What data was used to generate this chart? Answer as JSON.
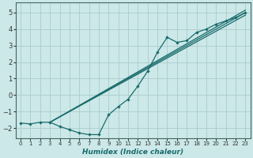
{
  "bg_color": "#cce8e8",
  "grid_color": "#aacccc",
  "line_color": "#1a6b6b",
  "xlabel": "Humidex (Indice chaleur)",
  "xlim": [
    -0.5,
    23.5
  ],
  "ylim": [
    -2.6,
    5.6
  ],
  "yticks": [
    -2,
    -1,
    0,
    1,
    2,
    3,
    4,
    5
  ],
  "xticks": [
    0,
    1,
    2,
    3,
    4,
    5,
    6,
    7,
    8,
    9,
    10,
    11,
    12,
    13,
    14,
    15,
    16,
    17,
    18,
    19,
    20,
    21,
    22,
    23
  ],
  "curved_x": [
    0,
    1,
    2,
    3,
    4,
    5,
    6,
    7,
    8,
    9,
    10,
    11,
    12,
    13,
    14,
    15,
    16,
    17,
    18,
    19,
    20,
    21,
    22,
    23
  ],
  "curved_y": [
    -1.7,
    -1.75,
    -1.65,
    -1.65,
    -1.9,
    -2.1,
    -2.3,
    -2.4,
    -2.4,
    -1.2,
    -0.7,
    -0.25,
    0.55,
    1.45,
    2.6,
    3.5,
    3.2,
    3.3,
    3.8,
    4.0,
    4.3,
    4.5,
    4.7,
    5.0
  ],
  "straight_lines": [
    {
      "x": [
        3,
        23
      ],
      "y": [
        -1.65,
        4.85
      ]
    },
    {
      "x": [
        3,
        23
      ],
      "y": [
        -1.65,
        5.0
      ]
    },
    {
      "x": [
        3,
        23
      ],
      "y": [
        -1.65,
        5.15
      ]
    }
  ],
  "spine_color": "#446666",
  "tick_color": "#333333",
  "xlabel_fontsize": 6.5,
  "ytick_fontsize": 6,
  "xtick_fontsize": 5.0
}
